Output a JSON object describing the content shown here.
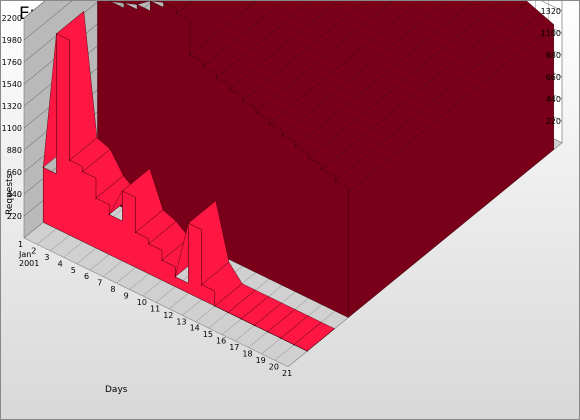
{
  "chart_data": {
    "type": "area",
    "title": "Errors History",
    "xlabel": "Days",
    "ylabel": "Requests",
    "first_category_sublabel": [
      "Jan",
      "2001"
    ],
    "categories": [
      "1",
      "2",
      "3",
      "4",
      "5",
      "6",
      "7",
      "8",
      "9",
      "10",
      "11",
      "12",
      "13",
      "14",
      "15",
      "16",
      "17",
      "18",
      "19",
      "20",
      "21"
    ],
    "y_ticks": [
      "220",
      "440",
      "660",
      "880",
      "1100",
      "1320",
      "1540",
      "1760",
      "1980",
      "2200"
    ],
    "ylim": [
      0,
      2200
    ],
    "grid": true,
    "series": [
      {
        "color": "#ff1744",
        "values": [
          550,
          1950,
          750,
          700,
          500,
          400,
          700,
          350,
          300,
          200,
          100,
          700,
          150,
          0,
          0,
          0,
          0,
          0,
          0,
          0,
          0
        ]
      },
      {
        "color": "#7a0019",
        "values": [
          null,
          2050,
          2000,
          2050,
          2100,
          2200,
          2250,
          2200,
          1850,
          1800,
          1750,
          1700,
          1650,
          1600,
          1550,
          1500,
          1450,
          1400,
          1350,
          1300,
          1250
        ]
      }
    ]
  }
}
